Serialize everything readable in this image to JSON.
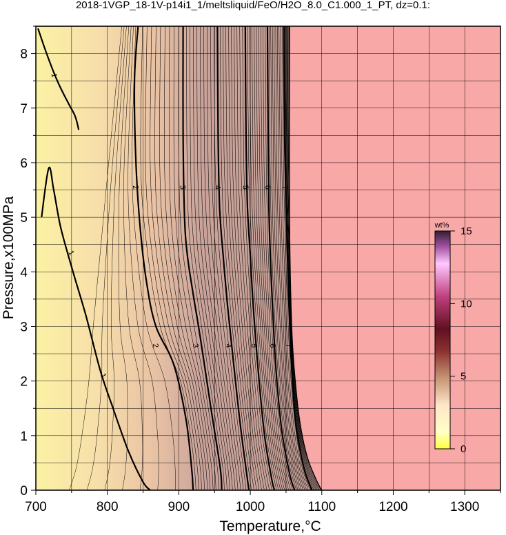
{
  "chart_data": {
    "type": "heatmap",
    "title": "2018-1VGP_18-1V-p14i1_1/meltsliquid/FeO/H2O_8.0_C1.000_1_PT, dz=0.1:",
    "xlabel": "Temperature,°C",
    "ylabel": "Pressure,x100MPa",
    "xlim": [
      700,
      1350
    ],
    "ylim": [
      0,
      8.5
    ],
    "x_ticks": [
      "700",
      "800",
      "900",
      "1000",
      "1100",
      "1200",
      "1300"
    ],
    "y_ticks": [
      "0",
      "1",
      "2",
      "3",
      "4",
      "5",
      "6",
      "7",
      "8"
    ],
    "grid": true,
    "colorbar": {
      "title": "wt%",
      "range": [
        0,
        15
      ],
      "ticks": [
        "0",
        "5",
        "10",
        "15"
      ],
      "placement": "right-inside"
    },
    "colors": {
      "low": "#fbf3a4",
      "above_liquidus": "#f9a8a8",
      "contour": "#000000"
    },
    "contour_interval": 0.1,
    "labeled_contours": [
      {
        "level": "1",
        "points": [
          [
            703,
            8.46
          ],
          [
            715,
            8.0
          ],
          [
            730,
            7.5
          ],
          [
            745,
            7.1
          ],
          [
            755,
            6.85
          ],
          [
            760,
            6.6
          ]
        ],
        "label_at": [
          [
            726,
            7.6
          ]
        ]
      },
      {
        "level": "2",
        "points": [
          [
            843,
            8.5
          ],
          [
            838,
            7.5
          ],
          [
            840,
            6.0
          ],
          [
            846,
            4.8
          ],
          [
            855,
            3.8
          ],
          [
            868,
            3.0
          ],
          [
            893,
            2.3
          ],
          [
            910,
            1.3
          ],
          [
            918,
            0.4
          ],
          [
            920,
            0
          ]
        ],
        "label_at": [
          [
            840,
            5.55
          ],
          [
            868,
            2.65
          ]
        ]
      },
      {
        "level": "3",
        "points": [
          [
            906,
            8.5
          ],
          [
            906,
            6.5
          ],
          [
            908,
            5.0
          ],
          [
            912,
            4.3
          ],
          [
            920,
            3.6
          ],
          [
            930,
            2.8
          ],
          [
            945,
            1.5
          ],
          [
            958,
            0.4
          ],
          [
            960,
            0
          ]
        ],
        "label_at": [
          [
            906,
            5.55
          ],
          [
            924,
            2.65
          ]
        ]
      },
      {
        "level": "4",
        "points": [
          [
            954,
            8.5
          ],
          [
            955,
            6.5
          ],
          [
            957,
            5.2
          ],
          [
            962,
            4.3
          ],
          [
            968,
            3.4
          ],
          [
            976,
            2.4
          ],
          [
            986,
            1.2
          ],
          [
            996,
            0.2
          ],
          [
            998,
            0
          ]
        ],
        "label_at": [
          [
            955,
            5.55
          ],
          [
            970,
            2.65
          ]
        ]
      },
      {
        "level": "5",
        "points": [
          [
            993,
            8.5
          ],
          [
            994,
            6.5
          ],
          [
            996,
            5.2
          ],
          [
            1000,
            4.3
          ],
          [
            1004,
            3.4
          ],
          [
            1011,
            2.2
          ],
          [
            1020,
            1.0
          ],
          [
            1030,
            0.2
          ],
          [
            1034,
            0
          ]
        ],
        "label_at": [
          [
            994,
            5.55
          ],
          [
            1006,
            2.65
          ]
        ]
      },
      {
        "level": "6",
        "points": [
          [
            1024,
            8.5
          ],
          [
            1025,
            6.5
          ],
          [
            1026,
            5.2
          ],
          [
            1028,
            4.3
          ],
          [
            1031,
            3.4
          ],
          [
            1036,
            2.2
          ],
          [
            1044,
            1.1
          ],
          [
            1055,
            0.3
          ],
          [
            1062,
            0
          ]
        ],
        "label_at": [
          [
            1025,
            5.55
          ],
          [
            1032,
            2.65
          ]
        ]
      },
      {
        "level": "7",
        "points": [
          [
            1047,
            8.5
          ],
          [
            1048,
            6.5
          ],
          [
            1050,
            5.2
          ],
          [
            1052,
            4.3
          ],
          [
            1054,
            3.4
          ],
          [
            1058,
            2.2
          ],
          [
            1064,
            1.2
          ],
          [
            1075,
            0.4
          ],
          [
            1086,
            0
          ]
        ],
        "label_at": [
          [
            1049,
            5.55
          ],
          [
            1054,
            2.65
          ]
        ]
      }
    ],
    "liquidus_boundary": [
      [
        1055,
        8.5
      ],
      [
        1055,
        5.0
      ],
      [
        1058,
        3.0
      ],
      [
        1063,
        2.0
      ],
      [
        1070,
        1.2
      ],
      [
        1080,
        0.6
      ],
      [
        1092,
        0.2
      ],
      [
        1100,
        0
      ]
    ]
  }
}
